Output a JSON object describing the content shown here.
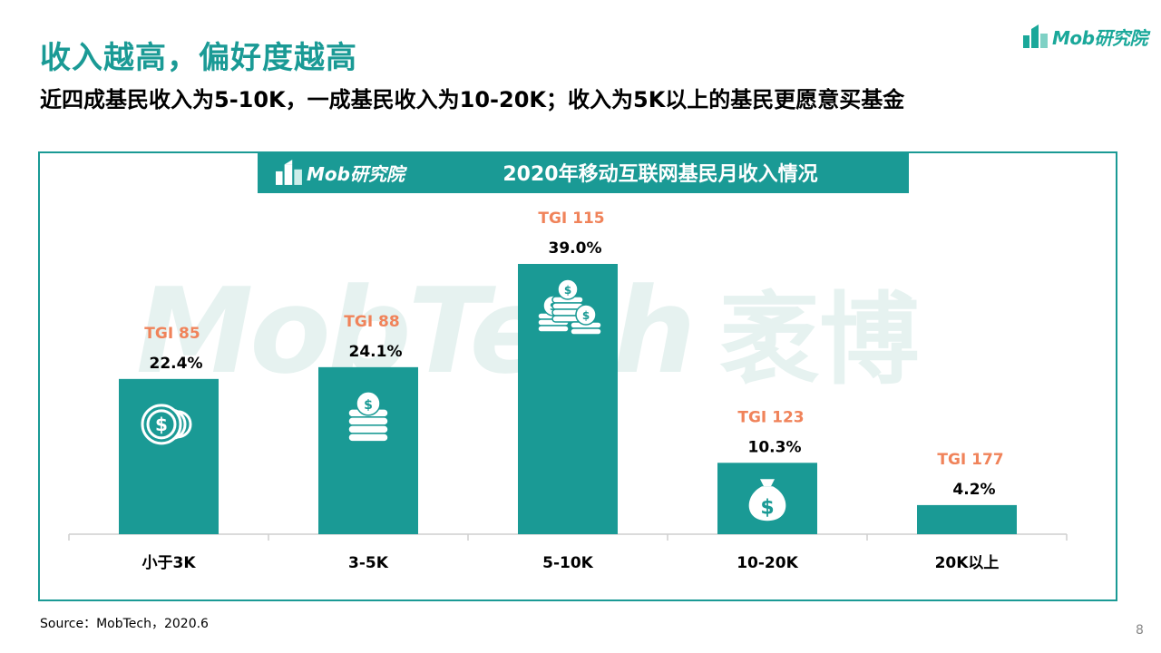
{
  "header": {
    "title": "收入越高，偏好度越高",
    "subtitle": "近四成基民收入为5-10K，一成基民收入为10-20K；收入为5K以上的基民更愿意买基金",
    "brand": "Mob研究院"
  },
  "chart_header": {
    "brand": "Mob研究院",
    "title": "2020年移动互联网基民月收入情况"
  },
  "watermark": {
    "text": "MobTech",
    "cn": "袤博"
  },
  "colors": {
    "accent": "#1a9a95",
    "tgi": "#f0835a",
    "bar": "#1a9a95",
    "axis": "#cfcfcf"
  },
  "chart_data": {
    "type": "bar",
    "title": "2020年移动互联网基民月收入情况",
    "categories": [
      "小于3K",
      "3-5K",
      "5-10K",
      "10-20K",
      "20K以上"
    ],
    "values": [
      22.4,
      24.1,
      39.0,
      10.3,
      4.2
    ],
    "value_labels": [
      "22.4%",
      "24.1%",
      "39.0%",
      "10.3%",
      "4.2%"
    ],
    "tgi_labels": [
      "TGI 85",
      "TGI 88",
      "TGI 115",
      "TGI 123",
      "TGI 177"
    ],
    "icons": [
      "coins-icon",
      "coin-stack-icon",
      "coin-stacks-icon",
      "money-bag-icon",
      ""
    ],
    "ylim": [
      0,
      39.0
    ],
    "grid": false,
    "xlabel": "",
    "ylabel": ""
  },
  "footer": {
    "source": "Source：MobTech，2020.6",
    "page": "8"
  }
}
